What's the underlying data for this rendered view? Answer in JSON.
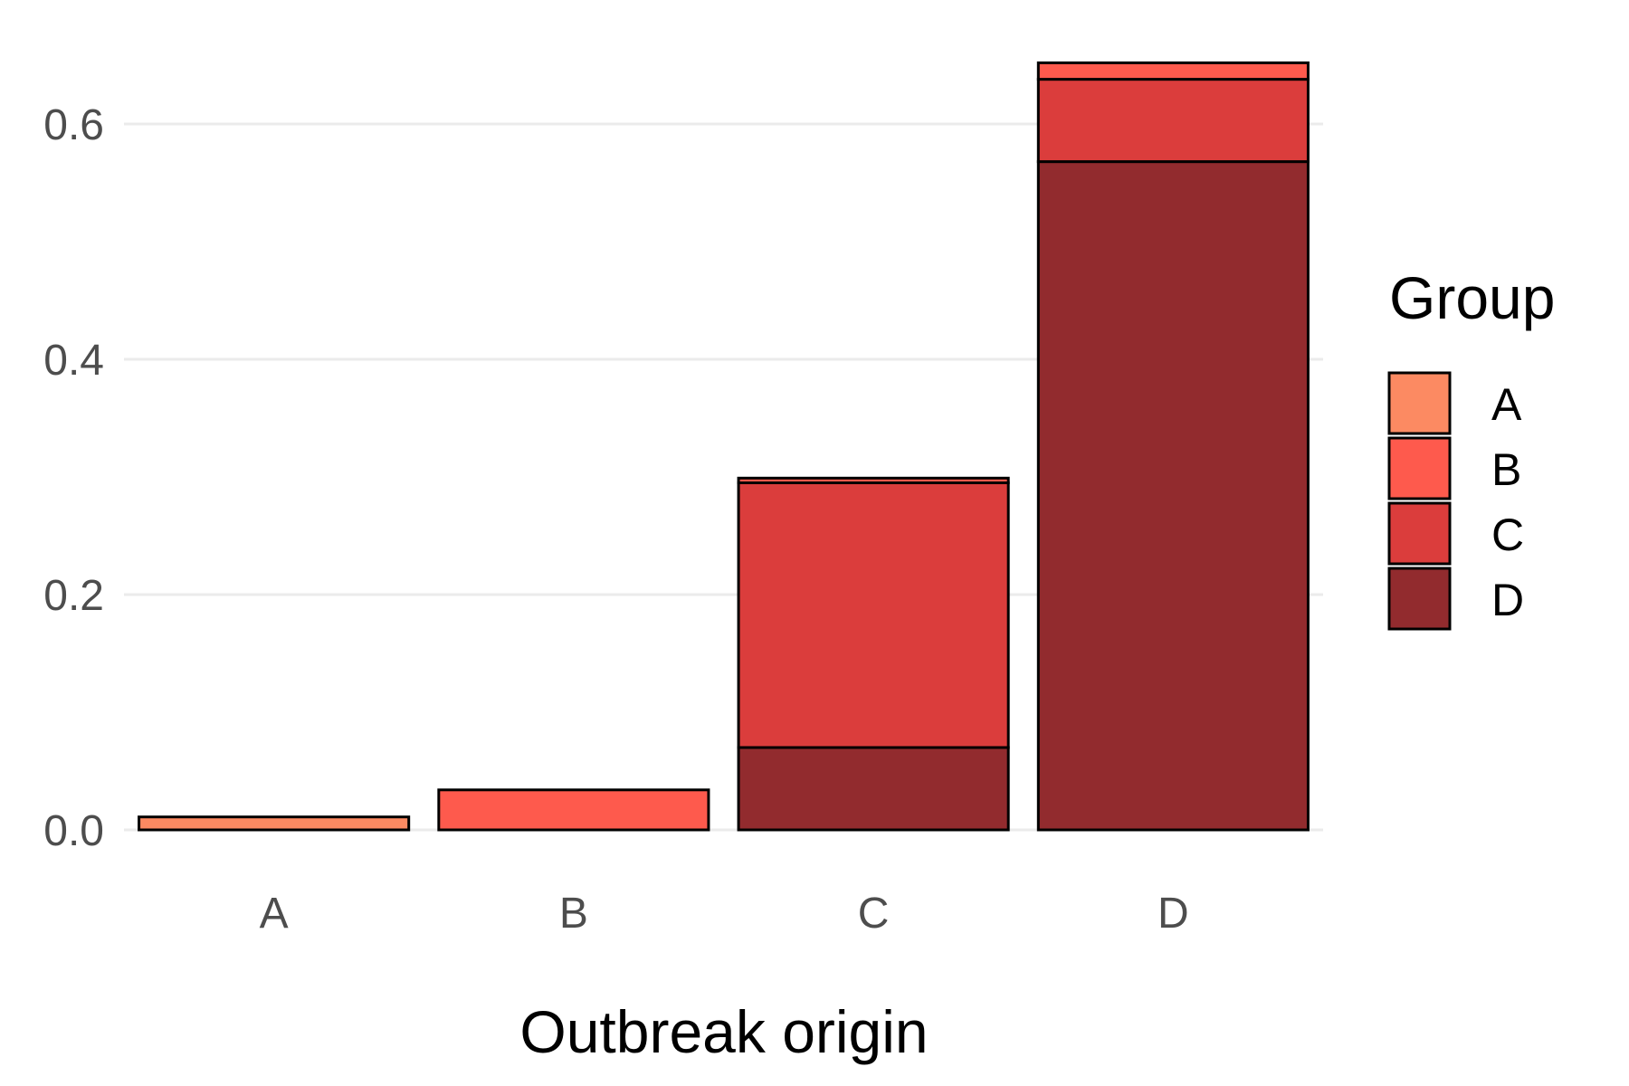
{
  "chart_data": {
    "type": "bar",
    "stacked": true,
    "title": "",
    "xlabel": "Outbreak origin",
    "ylabel": "",
    "categories": [
      "A",
      "B",
      "C",
      "D"
    ],
    "ylim": [
      -0.04,
      0.66
    ],
    "yticks": [
      0.0,
      0.2,
      0.4,
      0.6
    ],
    "ytick_labels": [
      "0.0",
      "0.2",
      "0.4",
      "0.6"
    ],
    "grid": true,
    "legend": {
      "title": "Group",
      "position": "right"
    },
    "series": [
      {
        "name": "D",
        "color": "#922b2e",
        "values": [
          0.0,
          0.0,
          0.07,
          0.568
        ]
      },
      {
        "name": "C",
        "color": "#db3d3c",
        "values": [
          0.0,
          0.0,
          0.225,
          0.07
        ]
      },
      {
        "name": "B",
        "color": "#fe5a4d",
        "values": [
          0.0,
          0.034,
          0.004,
          0.014
        ]
      },
      {
        "name": "A",
        "color": "#fc8a62",
        "values": [
          0.011,
          0.0,
          0.0,
          0.0
        ]
      }
    ],
    "legend_order": [
      "A",
      "B",
      "C",
      "D"
    ]
  }
}
